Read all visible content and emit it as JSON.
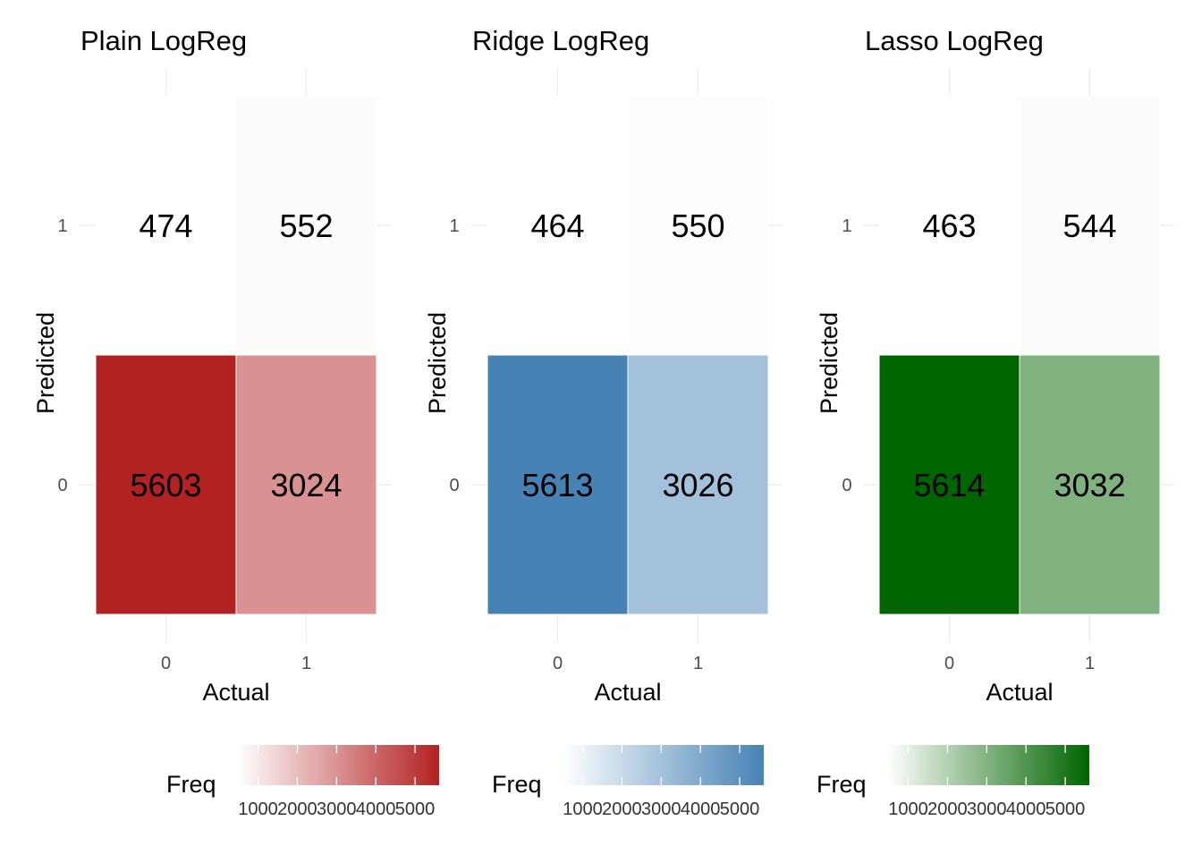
{
  "chart_data": [
    {
      "type": "heatmap",
      "title": "Plain LogReg",
      "xlabel": "Actual",
      "ylabel": "Predicted",
      "x_categories": [
        "0",
        "1"
      ],
      "y_categories": [
        "0",
        "1"
      ],
      "cells": [
        {
          "actual": "0",
          "predicted": "0",
          "freq": 5603,
          "label": "5603"
        },
        {
          "actual": "1",
          "predicted": "0",
          "freq": 3024,
          "label": "3024"
        },
        {
          "actual": "0",
          "predicted": "1",
          "freq": 474,
          "label": "474"
        },
        {
          "actual": "1",
          "predicted": "1",
          "freq": 552,
          "label": "552"
        }
      ],
      "low_color": "#ffffff",
      "high_color": "#b22222",
      "legend": {
        "title": "Freq",
        "position": "bottom",
        "limits": [
          463,
          5614
        ],
        "ticks": [
          1000,
          2000,
          3000,
          4000,
          5000
        ],
        "tick_labels": [
          "1000",
          "2000",
          "3000",
          "4000",
          "5000"
        ]
      },
      "grid": true
    },
    {
      "type": "heatmap",
      "title": "Ridge LogReg",
      "xlabel": "Actual",
      "ylabel": "Predicted",
      "x_categories": [
        "0",
        "1"
      ],
      "y_categories": [
        "0",
        "1"
      ],
      "cells": [
        {
          "actual": "0",
          "predicted": "0",
          "freq": 5613,
          "label": "5613"
        },
        {
          "actual": "1",
          "predicted": "0",
          "freq": 3026,
          "label": "3026"
        },
        {
          "actual": "0",
          "predicted": "1",
          "freq": 464,
          "label": "464"
        },
        {
          "actual": "1",
          "predicted": "1",
          "freq": 550,
          "label": "550"
        }
      ],
      "low_color": "#ffffff",
      "high_color": "#4682b4",
      "legend": {
        "title": "Freq",
        "position": "bottom",
        "limits": [
          463,
          5614
        ],
        "ticks": [
          1000,
          2000,
          3000,
          4000,
          5000
        ],
        "tick_labels": [
          "1000",
          "2000",
          "3000",
          "4000",
          "5000"
        ]
      },
      "grid": true
    },
    {
      "type": "heatmap",
      "title": "Lasso LogReg",
      "xlabel": "Actual",
      "ylabel": "Predicted",
      "x_categories": [
        "0",
        "1"
      ],
      "y_categories": [
        "0",
        "1"
      ],
      "cells": [
        {
          "actual": "0",
          "predicted": "0",
          "freq": 5614,
          "label": "5614"
        },
        {
          "actual": "1",
          "predicted": "0",
          "freq": 3032,
          "label": "3032"
        },
        {
          "actual": "0",
          "predicted": "1",
          "freq": 463,
          "label": "463"
        },
        {
          "actual": "1",
          "predicted": "1",
          "freq": 544,
          "label": "544"
        }
      ],
      "low_color": "#ffffff",
      "high_color": "#006400",
      "legend": {
        "title": "Freq",
        "position": "bottom",
        "limits": [
          463,
          5614
        ],
        "ticks": [
          1000,
          2000,
          3000,
          4000,
          5000
        ],
        "tick_labels": [
          "1000",
          "2000",
          "3000",
          "4000",
          "5000"
        ]
      },
      "grid": true
    }
  ]
}
